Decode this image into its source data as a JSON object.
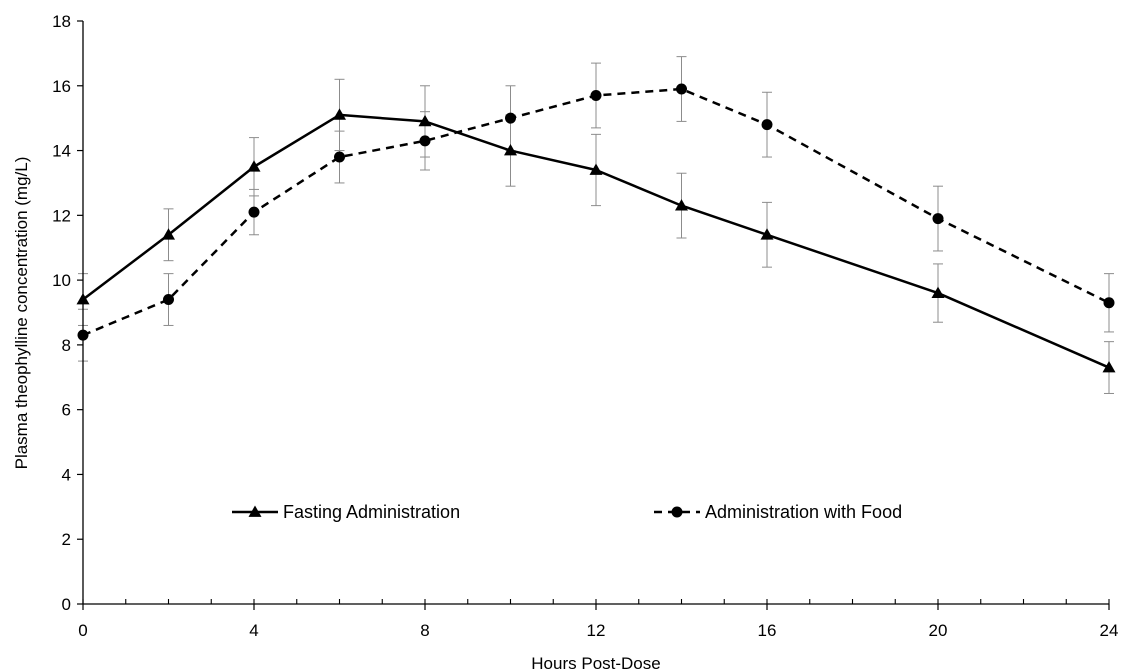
{
  "chart_data": {
    "type": "line",
    "xlabel": "Hours Post-Dose",
    "ylabel": "Plasma theophylline concentration (mg/L)",
    "xlim": [
      0,
      24
    ],
    "ylim": [
      0,
      18
    ],
    "x_ticks": [
      "0",
      "4",
      "8",
      "12",
      "16",
      "20",
      "24"
    ],
    "y_ticks": [
      "0",
      "2",
      "4",
      "6",
      "8",
      "10",
      "12",
      "14",
      "16",
      "18"
    ],
    "grid": false,
    "legend_position": "inside-bottom",
    "series": [
      {
        "name": "Fasting Administration",
        "line_style": "solid",
        "marker": "triangle",
        "color": "#000000",
        "x": [
          0,
          2,
          4,
          6,
          8,
          10,
          12,
          14,
          16,
          20,
          24
        ],
        "y": [
          9.4,
          11.4,
          13.5,
          15.1,
          14.9,
          14.0,
          13.4,
          12.3,
          11.4,
          9.6,
          7.3
        ],
        "error": [
          0.8,
          0.8,
          0.9,
          1.1,
          1.1,
          1.1,
          1.1,
          1.0,
          1.0,
          0.9,
          0.8
        ]
      },
      {
        "name": "Administration with Food",
        "line_style": "dashed",
        "marker": "circle",
        "color": "#000000",
        "x": [
          0,
          2,
          4,
          6,
          8,
          10,
          12,
          14,
          16,
          20,
          24
        ],
        "y": [
          8.3,
          9.4,
          12.1,
          13.8,
          14.3,
          15.0,
          15.7,
          15.9,
          14.8,
          11.9,
          9.3
        ],
        "error": [
          0.8,
          0.8,
          0.7,
          0.8,
          0.9,
          1.0,
          1.0,
          1.0,
          1.0,
          1.0,
          0.9
        ]
      }
    ]
  }
}
